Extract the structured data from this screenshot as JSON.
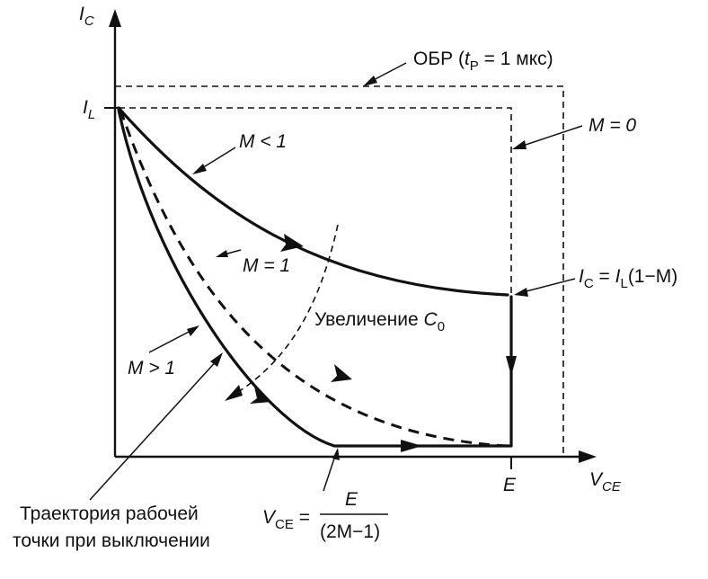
{
  "axes": {
    "y_label": "I",
    "y_label_sub": "C",
    "x_label": "V",
    "x_label_sub": "CE"
  },
  "ticks": {
    "il_label": "I",
    "il_label_sub": "L",
    "e_label": "E"
  },
  "labels": {
    "obr": {
      "pre": "ОБР (",
      "t": "t",
      "t_sub": "P",
      "post": " = 1 мкс)"
    },
    "m_zero": "M = 0",
    "m_less": "M < 1",
    "m_one": "M = 1",
    "m_greater": "M > 1",
    "ic_eq": {
      "ic": "I",
      "ic_sub": "C",
      "eq": " = ",
      "il": "I",
      "il_sub": "L",
      "rest": "(1−M)"
    },
    "increase": {
      "text": "Увеличение ",
      "c": "C",
      "c_sub": "0"
    },
    "trajectory_line1": "Траектория рабочей",
    "trajectory_line2": "точки при выключении",
    "vce_eq": {
      "v": "V",
      "v_sub": "CE",
      "eq": " = ",
      "num": "E",
      "den": "(2M−1)"
    }
  }
}
